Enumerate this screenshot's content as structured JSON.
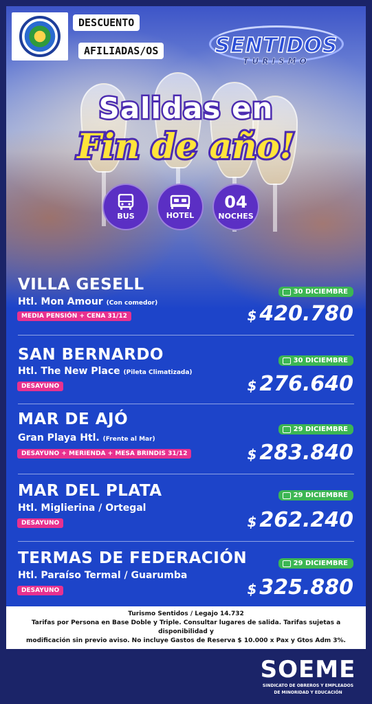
{
  "header": {
    "promo_line1": "DESCUENTO",
    "promo_line2": "AFILIADAS/OS",
    "brand_name": "SENTIDOS",
    "brand_sub": "TURISMO"
  },
  "hero": {
    "title_line1": "Salidas en",
    "title_line2": "Fin de año!",
    "badges": [
      {
        "label": "BUS",
        "icon": "bus-icon"
      },
      {
        "label": "HOTEL",
        "icon": "bed-icon"
      },
      {
        "number": "04",
        "label": "NOCHES"
      }
    ]
  },
  "destinations": [
    {
      "name": "VILLA GESELL",
      "hotel": "Htl. Mon Amour",
      "note": "(Con comedor)",
      "meal": "MEDIA PENSIÓN + CENA 31/12",
      "date": "30 DICIEMBRE",
      "currency": "$",
      "price": "420.780"
    },
    {
      "name": "SAN BERNARDO",
      "hotel": "Htl. The New Place",
      "note": "(Pileta Climatizada)",
      "meal": "DESAYUNO",
      "date": "30 DICIEMBRE",
      "currency": "$",
      "price": "276.640"
    },
    {
      "name": "MAR DE AJÓ",
      "hotel": "Gran Playa Htl.",
      "note": "(Frente al Mar)",
      "meal": "DESAYUNO + MERIENDA + MESA BRINDIS 31/12",
      "date": "29 DICIEMBRE",
      "currency": "$",
      "price": "283.840"
    },
    {
      "name": "MAR DEL PLATA",
      "hotel": "Htl. Miglierina / Ortegal",
      "note": "",
      "meal": "DESAYUNO",
      "date": "29 DICIEMBRE",
      "currency": "$",
      "price": "262.240"
    },
    {
      "name": "TERMAS DE FEDERACIÓN",
      "hotel": "Htl. Paraíso Termal / Guarumba",
      "note": "",
      "meal": "DESAYUNO",
      "date": "29 DICIEMBRE",
      "currency": "$",
      "price": "325.880"
    }
  ],
  "footer": {
    "line1": "Turismo Sentidos / Legajo 14.732",
    "line2": "Tarifas por Persona en Base Doble y Triple. Consultar lugares de salida. Tarifas sujetas a disponibilidad y",
    "line3": "modificación sin previo aviso. No incluye Gastos de Reserva $ 10.000 x Pax y Gtos Adm 3%."
  },
  "union": {
    "name": "SOEME",
    "sub1": "SINDICATO DE OBREROS Y EMPLEADOS",
    "sub2": "DE MINORIDAD Y EDUCACIÓN"
  },
  "colors": {
    "background": "#1b2468",
    "panel": "#1d44c9",
    "date_green": "#3cb653",
    "meal_pink": "#e8318f",
    "badge_purple": "#5b2fc4",
    "title_yellow": "#ffe43a"
  }
}
